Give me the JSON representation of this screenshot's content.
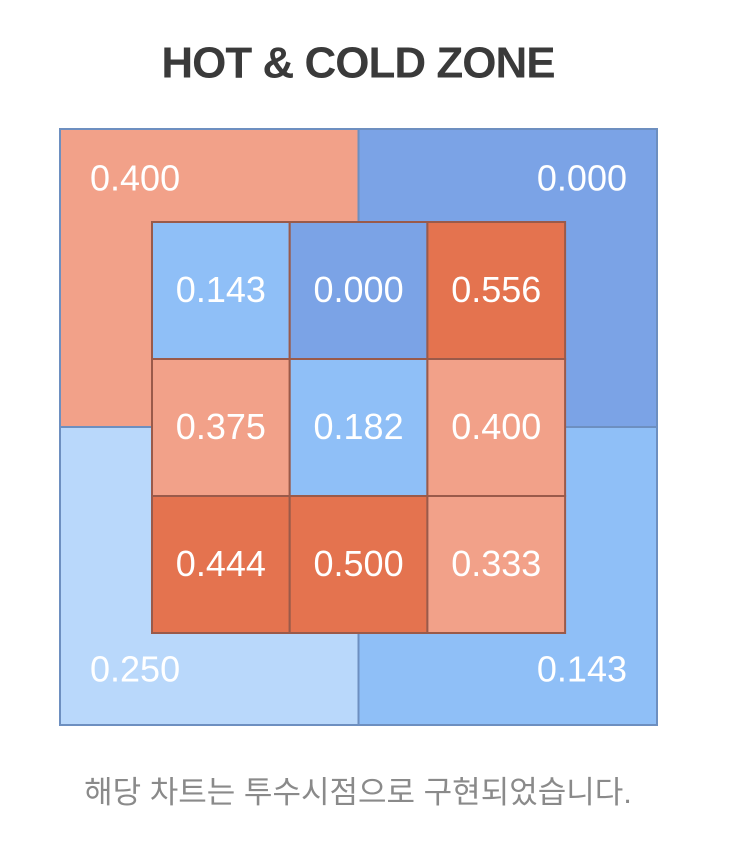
{
  "chart_data": {
    "type": "zone",
    "title": "HOT & COLD ZONE",
    "outer": {
      "values": [
        0.4,
        0,
        0.25,
        0.143
      ],
      "value_labels": [
        "0.400",
        "0.000",
        "0.250",
        "0.143"
      ],
      "colors": [
        "#f2a189",
        "#7ba3e6",
        "#b9d8fb",
        "#8fbff7"
      ]
    },
    "inner": {
      "values": [
        [
          0.143,
          0,
          0.556
        ],
        [
          0.375,
          0.182,
          0.4
        ],
        [
          0.444,
          0.5,
          0.333
        ]
      ],
      "value_labels": [
        [
          "0.143",
          "0.000",
          "0.556"
        ],
        [
          "0.375",
          "0.182",
          "0.400"
        ],
        [
          "0.444",
          "0.500",
          "0.333"
        ]
      ],
      "colors": [
        [
          "#8fbff7",
          "#7ba3e6",
          "#e4734f"
        ],
        [
          "#f2a189",
          "#8fbff7",
          "#f2a189"
        ],
        [
          "#e4734f",
          "#e4734f",
          "#f2a189"
        ]
      ]
    },
    "caption": "해당 차트는 투수시점으로 구현되었습니다."
  }
}
